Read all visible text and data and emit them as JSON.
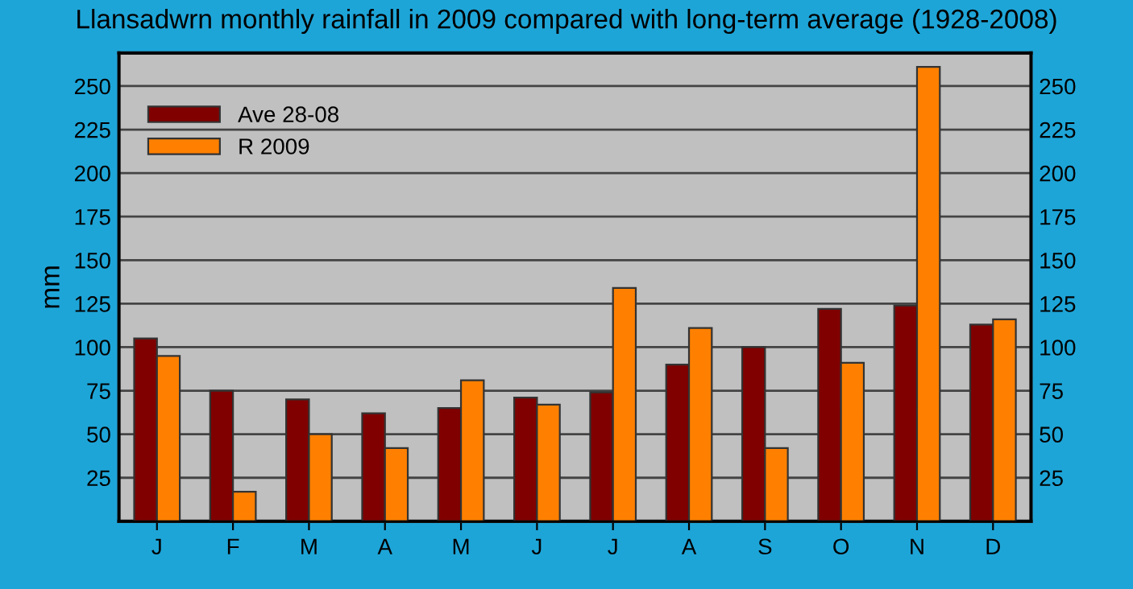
{
  "chart_data": {
    "type": "bar",
    "title": "Llansadwrn monthly rainfall in 2009 compared with long-term average (1928-2008)",
    "ylabel": "mm",
    "categories": [
      "J",
      "F",
      "M",
      "A",
      "M",
      "J",
      "J",
      "A",
      "S",
      "O",
      "N",
      "D"
    ],
    "series": [
      {
        "name": "Ave 28-08",
        "color": "#800000",
        "values": [
          105,
          75,
          70,
          62,
          65,
          71,
          74,
          90,
          100,
          122,
          124,
          113
        ]
      },
      {
        "name": "R 2009",
        "color": "#ff8000",
        "values": [
          95,
          17,
          50,
          42,
          81,
          67,
          134,
          111,
          42,
          91,
          261,
          116
        ]
      }
    ],
    "ylim": [
      0,
      269
    ],
    "yticks": [
      25,
      50,
      75,
      100,
      125,
      150,
      175,
      200,
      225,
      250
    ],
    "y2lim": [
      0,
      269
    ],
    "y2ticks": [
      25,
      50,
      75,
      100,
      125,
      150,
      175,
      200,
      225,
      250
    ],
    "grid": "y",
    "legend": "top left"
  }
}
